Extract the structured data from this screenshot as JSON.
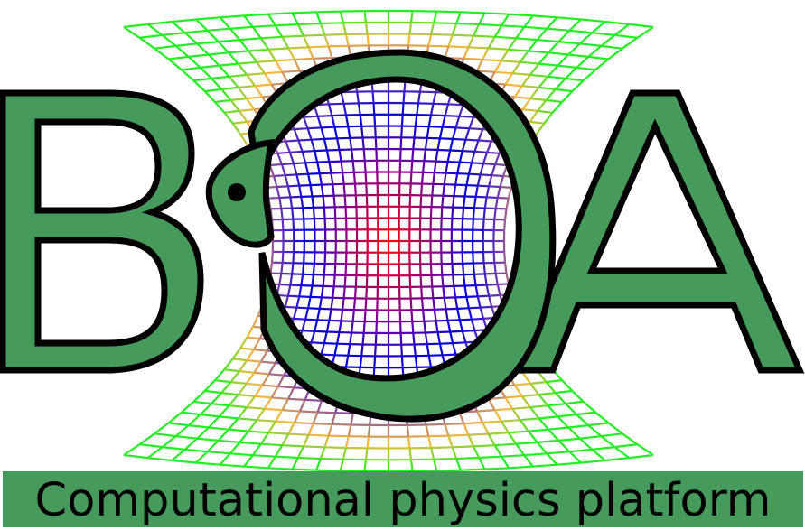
{
  "logo": {
    "letters": [
      "B",
      "A"
    ],
    "emblem": "snake-around-warped-grid",
    "colors": {
      "letter_fill": "#459a5c",
      "outline": "#000000",
      "snake_fill": "#459a5c",
      "grid_center": "#ff0000",
      "grid_mid": "#0000dd",
      "grid_outer_warm": "#f5b840",
      "grid_outer_green": "#22ee22"
    }
  },
  "tagline": {
    "text": "Computational physics platform",
    "background": "#459a5c",
    "color": "#000000"
  }
}
